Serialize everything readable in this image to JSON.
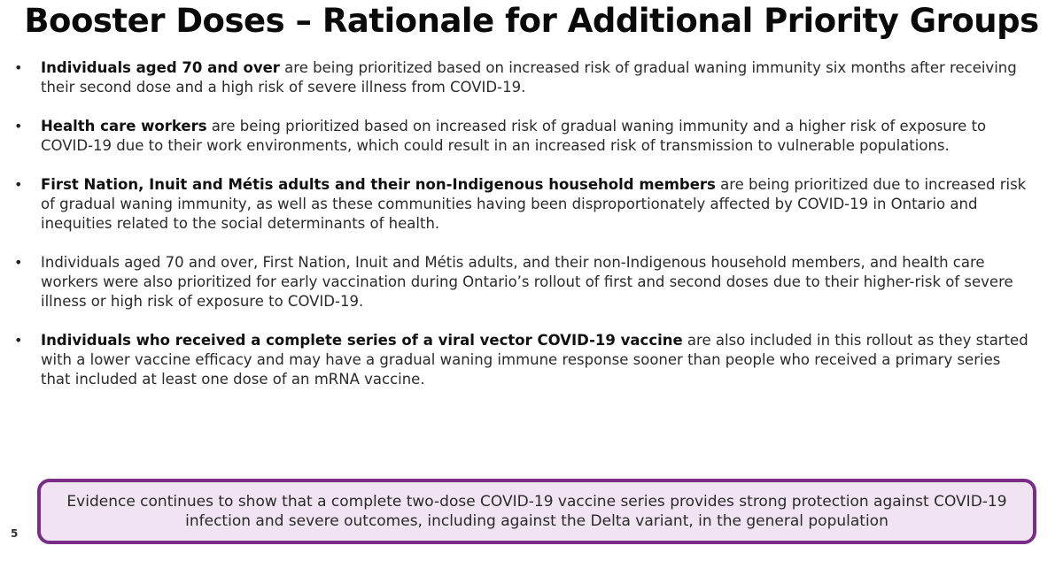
{
  "title": "Booster Doses – Rationale for Additional Priority Groups",
  "bullet_symbol": "•",
  "bullets": [
    {
      "bold": "Individuals aged 70 and over",
      "text": " are being prioritized based on increased risk of gradual waning immunity six months after receiving their second dose and a high risk of severe illness from COVID-19."
    },
    {
      "bold": "Health care workers",
      "text": " are being prioritized based on increased risk of gradual waning immunity and a higher risk of exposure to COVID-19 due to their work environments, which could result in an increased risk of transmission to vulnerable populations."
    },
    {
      "bold": "First Nation, Inuit and Métis adults and their non-Indigenous household members",
      "text": " are being prioritized due to increased risk of gradual waning immunity, as well as these communities having been disproportionately affected by COVID-19 in Ontario and inequities related to the social determinants of health."
    },
    {
      "bold": "",
      "text": "Individuals aged 70 and over, First Nation, Inuit and Métis adults, and their non-Indigenous household members, and health care workers were also prioritized for early vaccination during Ontario’s rollout of first and second doses due to their higher-risk of severe illness or high risk of exposure to COVID-19."
    },
    {
      "bold": "Individuals who received a complete series of a viral vector COVID-19 vaccine",
      "text": " are also included in this rollout as they started with a lower vaccine efficacy and may have a gradual waning immune response sooner than people who received a primary series that included at least one dose of an mRNA vaccine."
    }
  ],
  "callout": {
    "text": "Evidence continues to show that a complete two-dose COVID-19 vaccine series provides strong protection against COVID-19 infection and severe outcomes, including against the Delta variant, in the general population"
  },
  "page_number": "5",
  "colors": {
    "callout_border": "#7a2d86",
    "callout_fill": "#f0e3f2"
  }
}
